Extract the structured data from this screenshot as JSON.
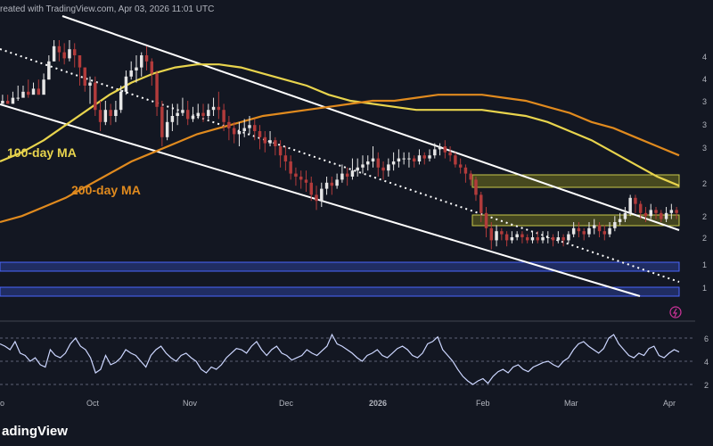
{
  "header": {
    "text": "reated with TradingView.com, Apr 03, 2026 11:01 UTC"
  },
  "brand": {
    "text": "adingView"
  },
  "labels": {
    "ma100": "100-day MA",
    "ma200": "200-day MA"
  },
  "colors": {
    "background": "#131722",
    "up": "#e6e6e6",
    "down": "#b23b3b",
    "ma100": "#e8d44d",
    "ma200": "#e08a1e",
    "channel": "#ffffff",
    "zone_resistance": "#6b6b1e",
    "zone_support": "#26357a",
    "rsi": "#ccd6ff",
    "flash": "#cc3399"
  },
  "chart_data": [
    {
      "type": "candlestick",
      "title": "",
      "x": {
        "ticks": [
          "o",
          "Oct",
          "Nov",
          "Dec",
          "2026",
          "Feb",
          "Mar",
          "Apr"
        ]
      },
      "y_axis_ticks_visible": [
        "4",
        "4",
        "3",
        "3",
        "3",
        "2",
        "2",
        "2",
        "1",
        "1"
      ],
      "y_axis_top_tick": "",
      "candles": [
        [
          54,
          55,
          57,
          55
        ],
        [
          55,
          54,
          57,
          54
        ],
        [
          54,
          56,
          58,
          56
        ],
        [
          56,
          56,
          60,
          55
        ],
        [
          56,
          58,
          60,
          58
        ],
        [
          58,
          57,
          62,
          56
        ],
        [
          57,
          59,
          61,
          59
        ],
        [
          59,
          57,
          62,
          57
        ],
        [
          57,
          62,
          64,
          60
        ],
        [
          62,
          68,
          70,
          62
        ],
        [
          68,
          73,
          75,
          68
        ],
        [
          73,
          71,
          75,
          68
        ],
        [
          71,
          69,
          74,
          67
        ],
        [
          69,
          72,
          75,
          68
        ],
        [
          72,
          70,
          74,
          66
        ],
        [
          70,
          66,
          70,
          60
        ],
        [
          66,
          60,
          66,
          58
        ],
        [
          60,
          61,
          63,
          54
        ],
        [
          61,
          52,
          63,
          50
        ],
        [
          52,
          48,
          55,
          45
        ],
        [
          48,
          52,
          55,
          47
        ],
        [
          52,
          50,
          54,
          47
        ],
        [
          50,
          52,
          55,
          48
        ],
        [
          52,
          58,
          60,
          51
        ],
        [
          58,
          63,
          65,
          57
        ],
        [
          63,
          65,
          68,
          62
        ],
        [
          65,
          66,
          70,
          61
        ],
        [
          66,
          70,
          71,
          63
        ],
        [
          70,
          68,
          73,
          65
        ],
        [
          68,
          64,
          69,
          60
        ],
        [
          64,
          53,
          65,
          50
        ],
        [
          53,
          43,
          55,
          40
        ],
        [
          43,
          48,
          52,
          42
        ],
        [
          48,
          50,
          54,
          45
        ],
        [
          50,
          51,
          54,
          47
        ],
        [
          51,
          52,
          56,
          50
        ],
        [
          52,
          49,
          55,
          47
        ],
        [
          49,
          50,
          53,
          48
        ],
        [
          50,
          51,
          54,
          49
        ],
        [
          51,
          50,
          54,
          48
        ],
        [
          50,
          52,
          54,
          49
        ],
        [
          52,
          53,
          56,
          50
        ],
        [
          53,
          52,
          58,
          49
        ],
        [
          52,
          48,
          54,
          45
        ],
        [
          48,
          46,
          50,
          42
        ],
        [
          46,
          44,
          48,
          41
        ],
        [
          44,
          45,
          48,
          40
        ],
        [
          45,
          46,
          49,
          43
        ],
        [
          46,
          47,
          50,
          44
        ],
        [
          47,
          45,
          49,
          42
        ],
        [
          45,
          43,
          47,
          39
        ],
        [
          43,
          41,
          45,
          38
        ],
        [
          41,
          42,
          45,
          40
        ],
        [
          42,
          40,
          43,
          37
        ],
        [
          40,
          37,
          42,
          33
        ],
        [
          37,
          35,
          40,
          32
        ],
        [
          35,
          31,
          37,
          29
        ],
        [
          31,
          30,
          33,
          27
        ],
        [
          30,
          29,
          32,
          26
        ],
        [
          29,
          28,
          32,
          25
        ],
        [
          28,
          24,
          30,
          22
        ],
        [
          24,
          22,
          27,
          19
        ],
        [
          22,
          26,
          28,
          20
        ],
        [
          26,
          28,
          30,
          24
        ],
        [
          28,
          27,
          30,
          24
        ],
        [
          27,
          29,
          31,
          26
        ],
        [
          29,
          31,
          34,
          28
        ],
        [
          31,
          30,
          33,
          27
        ],
        [
          30,
          32,
          36,
          29
        ],
        [
          32,
          33,
          36,
          30
        ],
        [
          33,
          34,
          37,
          31
        ],
        [
          34,
          35,
          37,
          32
        ],
        [
          35,
          36,
          40,
          33
        ],
        [
          36,
          33,
          38,
          30
        ],
        [
          33,
          32,
          35,
          29
        ],
        [
          32,
          34,
          36,
          30
        ],
        [
          34,
          35,
          38,
          32
        ],
        [
          35,
          36,
          39,
          33
        ],
        [
          36,
          36,
          38,
          34
        ],
        [
          36,
          36,
          38,
          33
        ],
        [
          36,
          35,
          37,
          33
        ],
        [
          35,
          37,
          39,
          34
        ],
        [
          37,
          36,
          38,
          34
        ],
        [
          36,
          37,
          39,
          35
        ],
        [
          37,
          39,
          41,
          36
        ],
        [
          39,
          40,
          41,
          37
        ],
        [
          40,
          38,
          42,
          36
        ],
        [
          38,
          37,
          40,
          35
        ],
        [
          37,
          34,
          38,
          33
        ],
        [
          34,
          33,
          36,
          31
        ],
        [
          33,
          31,
          34,
          28
        ],
        [
          31,
          29,
          32,
          27
        ],
        [
          29,
          24,
          30,
          22
        ],
        [
          24,
          18,
          25,
          15
        ],
        [
          18,
          13,
          20,
          10
        ],
        [
          13,
          9,
          15,
          6
        ],
        [
          9,
          12,
          14,
          7
        ],
        [
          12,
          11,
          13,
          9
        ],
        [
          11,
          9,
          12,
          7
        ],
        [
          9,
          10,
          12,
          8
        ],
        [
          10,
          11,
          12,
          9
        ],
        [
          11,
          10,
          12,
          8
        ],
        [
          10,
          9,
          11,
          8
        ],
        [
          9,
          10,
          12,
          8
        ],
        [
          10,
          9,
          12,
          8
        ],
        [
          9,
          10,
          12,
          8
        ],
        [
          10,
          10,
          12,
          8
        ],
        [
          10,
          9,
          11,
          7
        ],
        [
          9,
          10,
          12,
          8
        ],
        [
          10,
          9,
          11,
          7
        ],
        [
          9,
          11,
          12,
          8
        ],
        [
          11,
          13,
          15,
          10
        ],
        [
          13,
          12,
          15,
          10
        ],
        [
          12,
          11,
          13,
          9
        ],
        [
          11,
          13,
          15,
          10
        ],
        [
          13,
          14,
          16,
          11
        ],
        [
          14,
          12,
          15,
          10
        ],
        [
          12,
          11,
          14,
          9
        ],
        [
          11,
          13,
          15,
          10
        ],
        [
          13,
          15,
          17,
          12
        ],
        [
          15,
          16,
          18,
          14
        ],
        [
          16,
          18,
          20,
          15
        ],
        [
          18,
          23,
          24,
          17
        ],
        [
          23,
          21,
          24,
          18
        ],
        [
          21,
          18,
          22,
          16
        ],
        [
          18,
          17,
          20,
          15
        ],
        [
          17,
          19,
          21,
          16
        ],
        [
          19,
          18,
          20,
          16
        ],
        [
          18,
          16,
          19,
          15
        ],
        [
          16,
          18,
          20,
          15
        ],
        [
          18,
          19,
          21,
          16
        ],
        [
          19,
          18,
          20,
          16
        ]
      ],
      "moving_averages": [
        {
          "name": "100-day MA",
          "values": [
            35,
            38,
            42,
            47,
            52,
            57,
            61,
            64,
            66,
            67,
            67,
            66,
            64,
            62,
            60,
            57,
            55,
            54,
            53,
            52,
            52,
            52,
            52,
            51,
            50,
            48,
            45,
            42,
            38,
            34,
            30,
            27
          ]
        },
        {
          "name": "200-day MA",
          "values": [
            15,
            17,
            20,
            23,
            27,
            31,
            35,
            38,
            41,
            44,
            46,
            48,
            50,
            51,
            52,
            53,
            54,
            55,
            55,
            56,
            57,
            57,
            57,
            56,
            55,
            53,
            51,
            48,
            46,
            43,
            40,
            37
          ]
        }
      ],
      "annotations": [
        "100-day MA",
        "200-day MA"
      ]
    },
    {
      "type": "line",
      "title": "",
      "name": "",
      "y_axis_ticks_visible": [
        "6",
        "4",
        "2"
      ],
      "values": [
        60,
        58,
        55,
        62,
        52,
        50,
        45,
        48,
        42,
        40,
        55,
        50,
        48,
        52,
        60,
        65,
        58,
        55,
        48,
        35,
        38,
        50,
        42,
        44,
        48,
        55,
        52,
        50,
        45,
        40,
        50,
        55,
        58,
        52,
        48,
        45,
        50,
        52,
        48,
        45,
        38,
        35,
        40,
        38,
        42,
        48,
        52,
        56,
        55,
        52,
        58,
        62,
        55,
        50,
        55,
        58,
        52,
        50,
        46,
        48,
        50,
        55,
        52,
        50,
        54,
        58,
        68,
        60,
        58,
        55,
        52,
        48,
        45,
        50,
        52,
        55,
        50,
        48,
        52,
        56,
        58,
        55,
        50,
        48,
        52,
        60,
        62,
        66,
        55,
        50,
        45,
        38,
        32,
        28,
        25,
        28,
        30,
        26,
        32,
        36,
        38,
        35,
        40,
        42,
        38,
        36,
        40,
        42,
        44,
        45,
        42,
        40,
        45,
        48,
        55,
        60,
        62,
        58,
        55,
        52,
        56,
        65,
        68,
        60,
        55,
        50,
        48,
        52,
        50,
        56,
        58,
        50,
        48,
        52,
        55,
        53
      ]
    }
  ]
}
